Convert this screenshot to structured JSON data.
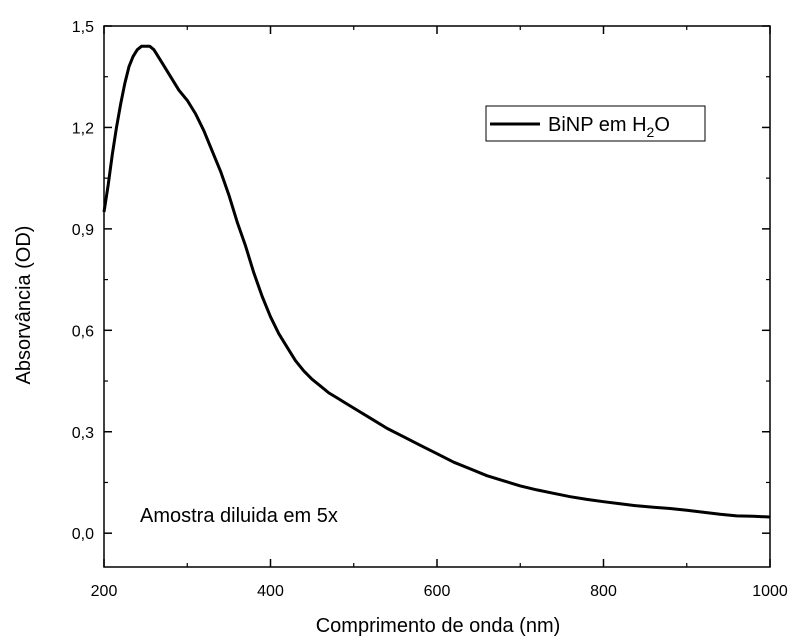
{
  "chart_data": {
    "type": "line",
    "xlabel": "Comprimento de onda (nm)",
    "ylabel": "Absorvância (OD)",
    "xlim": [
      200,
      1000
    ],
    "ylim": [
      -0.1,
      1.5
    ],
    "x_ticks": [
      200,
      400,
      600,
      800,
      1000
    ],
    "x_tick_labels": [
      "200",
      "400",
      "600",
      "800",
      "1000"
    ],
    "y_ticks": [
      0.0,
      0.3,
      0.6,
      0.9,
      1.2,
      1.5
    ],
    "y_tick_labels": [
      "0,0",
      "0,3",
      "0,6",
      "0,9",
      "1,2",
      "1,5"
    ],
    "legend_position": "top-right",
    "annotation": "Amostra diluida em 5x",
    "series": [
      {
        "name": "BiNP em H2O",
        "color": "#000000",
        "x": [
          200,
          205,
          210,
          215,
          220,
          225,
          230,
          235,
          240,
          245,
          250,
          255,
          260,
          265,
          270,
          280,
          290,
          300,
          310,
          320,
          330,
          340,
          350,
          360,
          370,
          380,
          390,
          400,
          410,
          420,
          430,
          440,
          450,
          460,
          470,
          480,
          490,
          500,
          520,
          540,
          560,
          580,
          600,
          620,
          640,
          660,
          680,
          700,
          720,
          740,
          760,
          780,
          800,
          820,
          840,
          860,
          880,
          900,
          920,
          940,
          960,
          980,
          1000
        ],
        "y": [
          0.95,
          1.03,
          1.12,
          1.2,
          1.27,
          1.33,
          1.38,
          1.41,
          1.43,
          1.44,
          1.44,
          1.44,
          1.43,
          1.41,
          1.39,
          1.35,
          1.31,
          1.28,
          1.24,
          1.19,
          1.13,
          1.07,
          1.0,
          0.92,
          0.85,
          0.77,
          0.7,
          0.64,
          0.59,
          0.55,
          0.51,
          0.48,
          0.455,
          0.435,
          0.415,
          0.4,
          0.385,
          0.37,
          0.34,
          0.31,
          0.285,
          0.26,
          0.235,
          0.21,
          0.19,
          0.17,
          0.155,
          0.14,
          0.128,
          0.118,
          0.108,
          0.1,
          0.093,
          0.087,
          0.081,
          0.077,
          0.073,
          0.068,
          0.062,
          0.056,
          0.051,
          0.05,
          0.048
        ]
      }
    ]
  },
  "legend": {
    "label_main": "BiNP em H",
    "label_sub": "2",
    "label_tail": "O"
  }
}
